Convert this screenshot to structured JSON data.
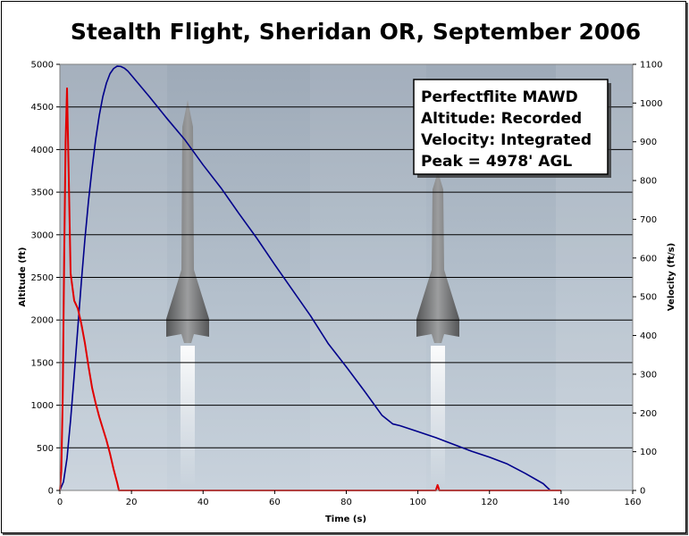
{
  "chart_data": {
    "type": "line",
    "title": "Stealth Flight, Sheridan OR, September 2006",
    "xlabel": "Time (s)",
    "ylabel": "Altitude (ft)",
    "y2label": "Velocity (ft/s)",
    "xlim": [
      0,
      160
    ],
    "ylim": [
      0,
      5000
    ],
    "y2lim": [
      0,
      1100
    ],
    "x_ticks": [
      0,
      20,
      40,
      60,
      80,
      100,
      120,
      140,
      160
    ],
    "y_ticks": [
      0,
      500,
      1000,
      1500,
      2000,
      2500,
      3000,
      3500,
      4000,
      4500,
      5000
    ],
    "y2_ticks": [
      0,
      100,
      200,
      300,
      400,
      500,
      600,
      700,
      800,
      900,
      1000,
      1100
    ],
    "annotation": {
      "lines": [
        "Perfectflite MAWD",
        "Altitude: Recorded",
        "Velocity: Integrated",
        "Peak = 4978' AGL"
      ]
    },
    "series": [
      {
        "name": "Altitude",
        "axis": "left",
        "color": "#00008b",
        "points": [
          [
            0,
            0
          ],
          [
            1,
            100
          ],
          [
            2,
            380
          ],
          [
            3,
            830
          ],
          [
            4,
            1350
          ],
          [
            5,
            1900
          ],
          [
            6,
            2450
          ],
          [
            7,
            2950
          ],
          [
            8,
            3400
          ],
          [
            9,
            3780
          ],
          [
            10,
            4120
          ],
          [
            11,
            4400
          ],
          [
            12,
            4620
          ],
          [
            13,
            4780
          ],
          [
            14,
            4890
          ],
          [
            15,
            4950
          ],
          [
            16,
            4978
          ],
          [
            17,
            4975
          ],
          [
            18,
            4955
          ],
          [
            19,
            4920
          ],
          [
            20,
            4870
          ],
          [
            25,
            4620
          ],
          [
            30,
            4360
          ],
          [
            35,
            4110
          ],
          [
            40,
            3820
          ],
          [
            45,
            3550
          ],
          [
            50,
            3250
          ],
          [
            55,
            2960
          ],
          [
            60,
            2650
          ],
          [
            65,
            2350
          ],
          [
            70,
            2050
          ],
          [
            75,
            1720
          ],
          [
            80,
            1450
          ],
          [
            85,
            1170
          ],
          [
            90,
            880
          ],
          [
            93,
            780
          ],
          [
            95,
            760
          ],
          [
            100,
            690
          ],
          [
            105,
            620
          ],
          [
            110,
            540
          ],
          [
            115,
            460
          ],
          [
            120,
            390
          ],
          [
            125,
            310
          ],
          [
            130,
            200
          ],
          [
            135,
            80
          ],
          [
            137,
            0
          ]
        ]
      },
      {
        "name": "Velocity",
        "axis": "right",
        "color": "#e00000",
        "points": [
          [
            0,
            0
          ],
          [
            0.4,
            50
          ],
          [
            0.8,
            240
          ],
          [
            1.2,
            600
          ],
          [
            1.6,
            900
          ],
          [
            2,
            1038
          ],
          [
            2.5,
            800
          ],
          [
            3,
            560
          ],
          [
            4,
            490
          ],
          [
            5,
            470
          ],
          [
            6,
            430
          ],
          [
            7,
            380
          ],
          [
            8,
            320
          ],
          [
            9,
            265
          ],
          [
            10,
            225
          ],
          [
            11,
            190
          ],
          [
            12,
            160
          ],
          [
            13,
            130
          ],
          [
            14,
            95
          ],
          [
            15,
            55
          ],
          [
            16,
            20
          ],
          [
            16.5,
            0
          ],
          [
            17,
            0
          ],
          [
            20,
            0
          ],
          [
            40,
            0
          ],
          [
            60,
            0
          ],
          [
            80,
            0
          ],
          [
            100,
            0
          ],
          [
            105,
            0
          ],
          [
            105.5,
            14
          ],
          [
            106,
            0
          ],
          [
            120,
            0
          ],
          [
            140,
            0
          ]
        ]
      }
    ]
  }
}
